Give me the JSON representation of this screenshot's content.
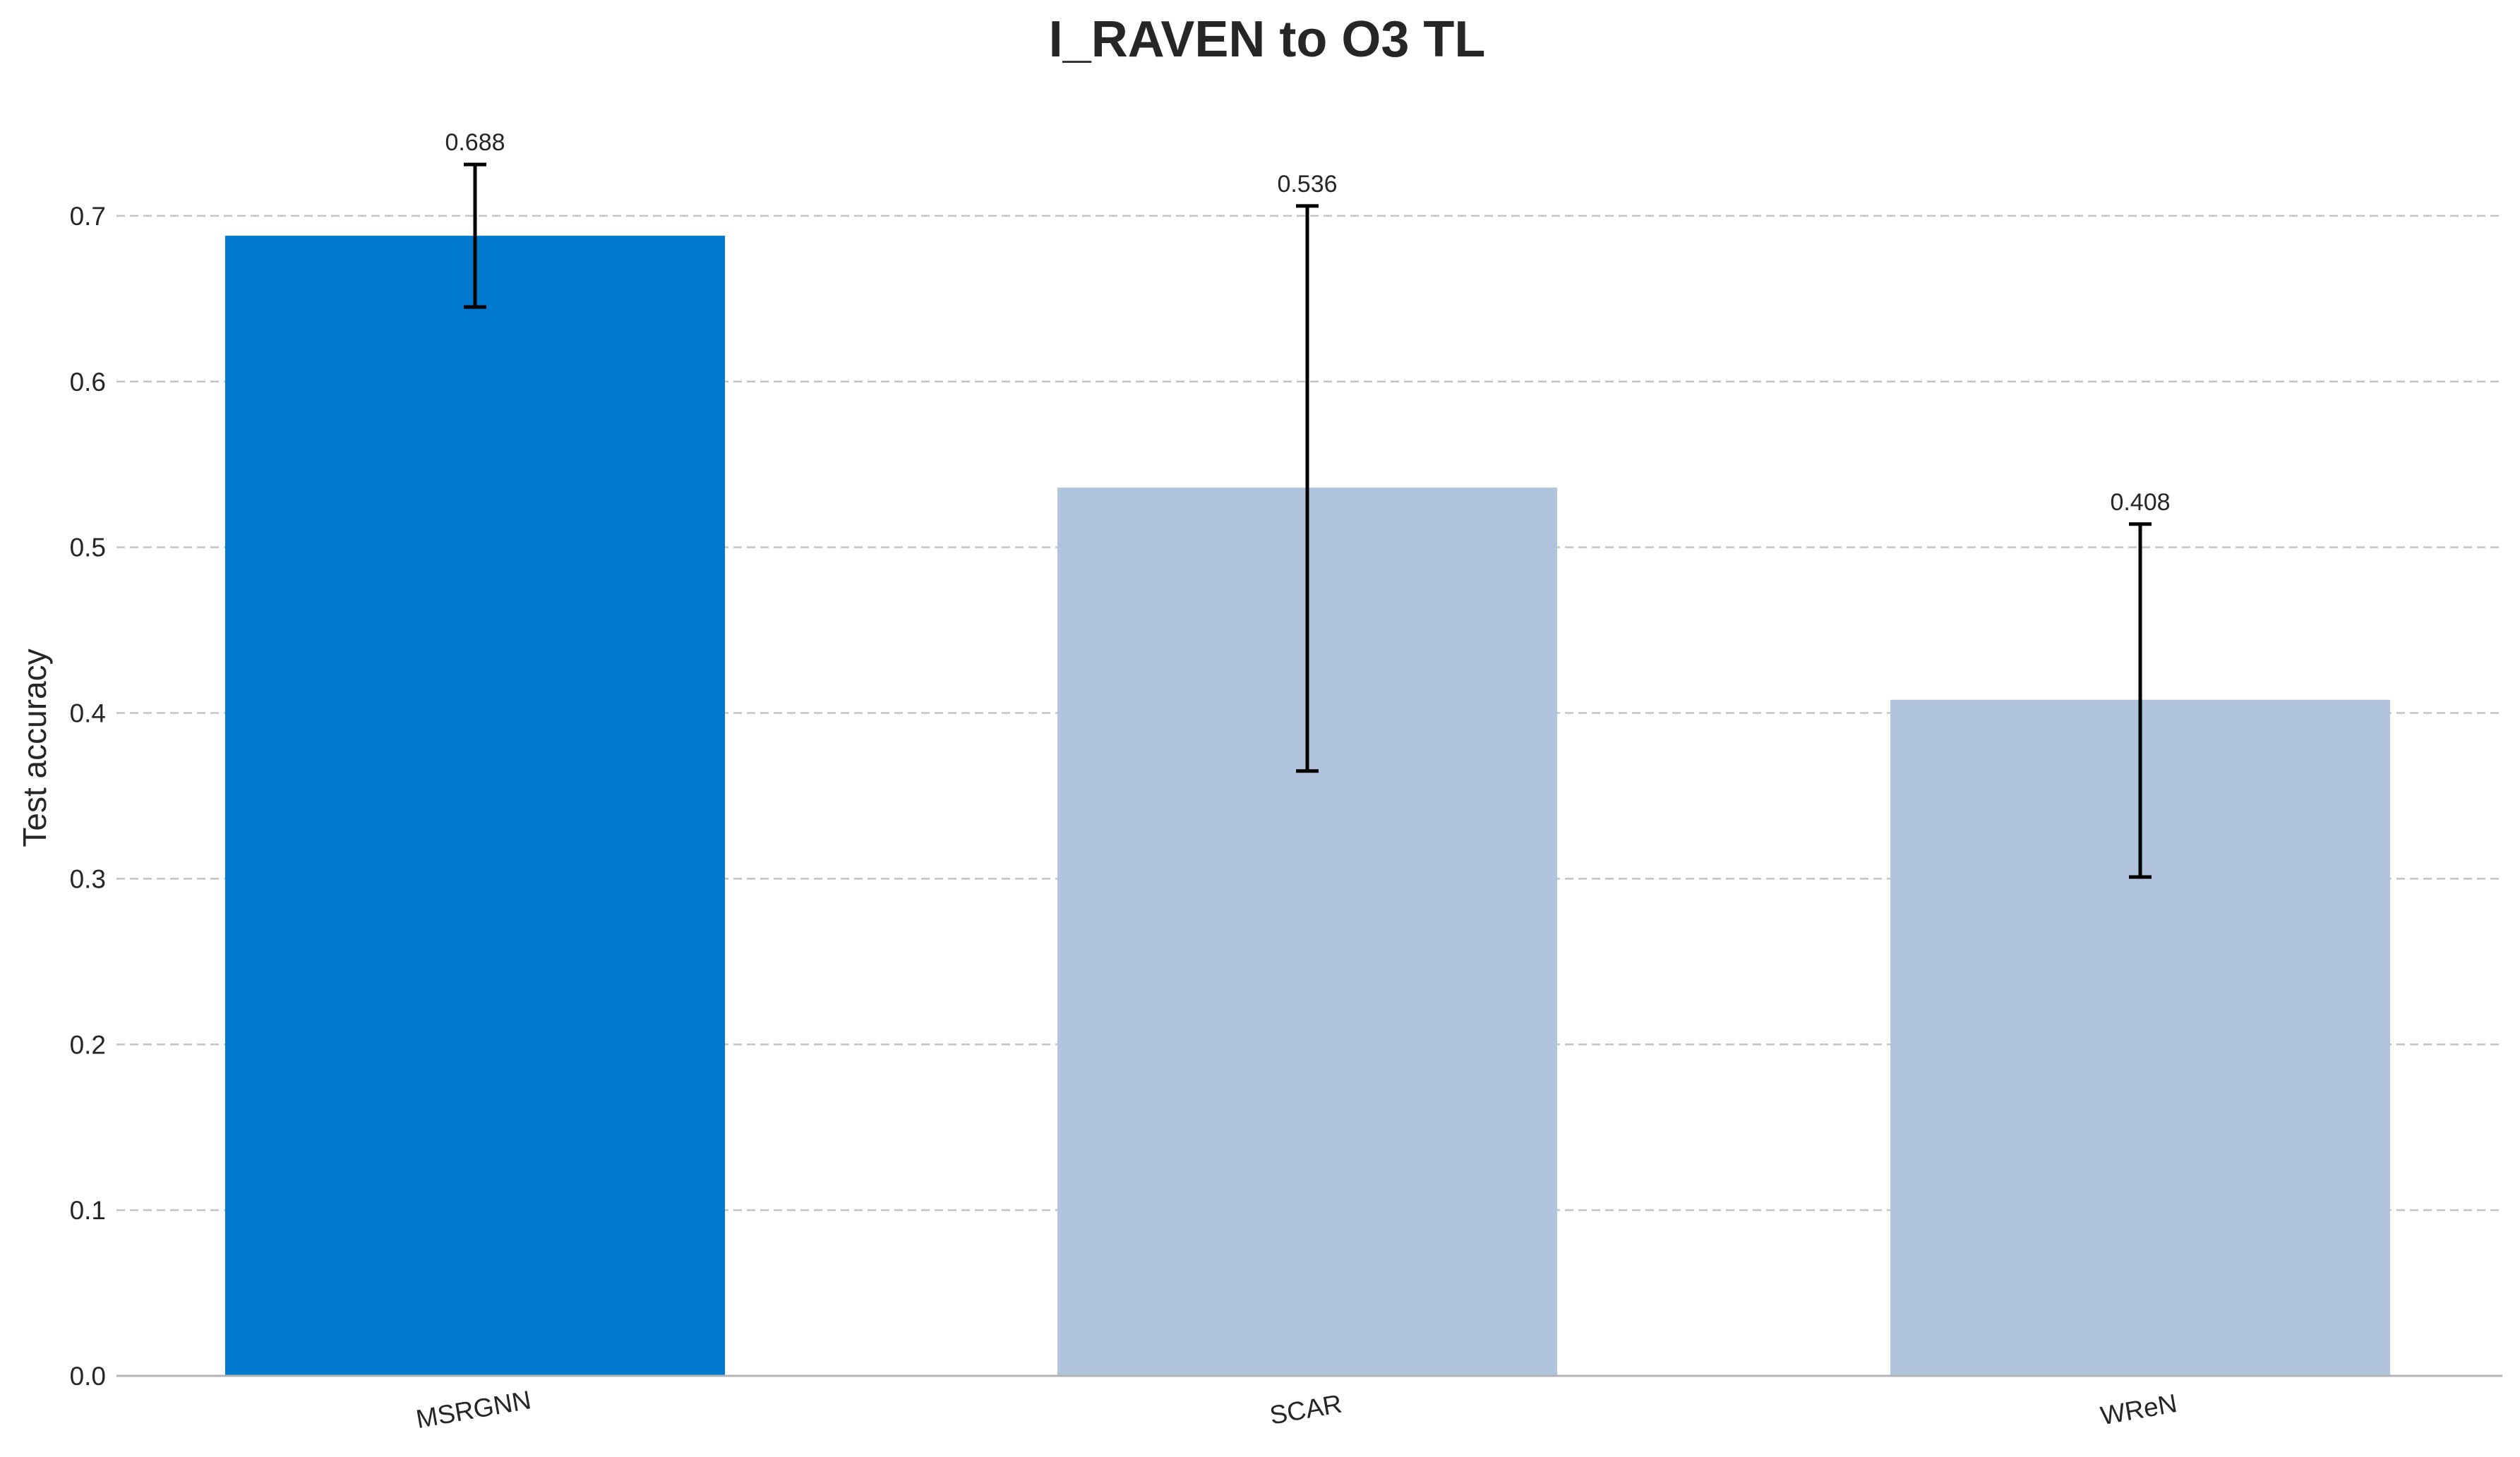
{
  "chart_data": {
    "type": "bar",
    "title": "I_RAVEN to O3 TL",
    "xlabel": "",
    "ylabel": "Test accuracy",
    "categories": [
      "MSRGNN",
      "SCAR",
      "WReN"
    ],
    "values": [
      0.688,
      0.536,
      0.408
    ],
    "error_bars": [
      {
        "low": 0.645,
        "high": 0.731
      },
      {
        "low": 0.365,
        "high": 0.706
      },
      {
        "low": 0.301,
        "high": 0.514
      }
    ],
    "data_labels": [
      "0.688",
      "0.536",
      "0.408"
    ],
    "bar_colors": [
      "#0079cf",
      "#b0c4de",
      "#b0c4de"
    ],
    "ylim": [
      0,
      0.76
    ],
    "yticks": [
      0.0,
      0.1,
      0.2,
      0.3,
      0.4,
      0.5,
      0.6,
      0.7
    ],
    "ytick_labels": [
      "0.0",
      "0.1",
      "0.2",
      "0.3",
      "0.4",
      "0.5",
      "0.6",
      "0.7"
    ],
    "grid": "horizontal dashed",
    "legend": "none"
  }
}
